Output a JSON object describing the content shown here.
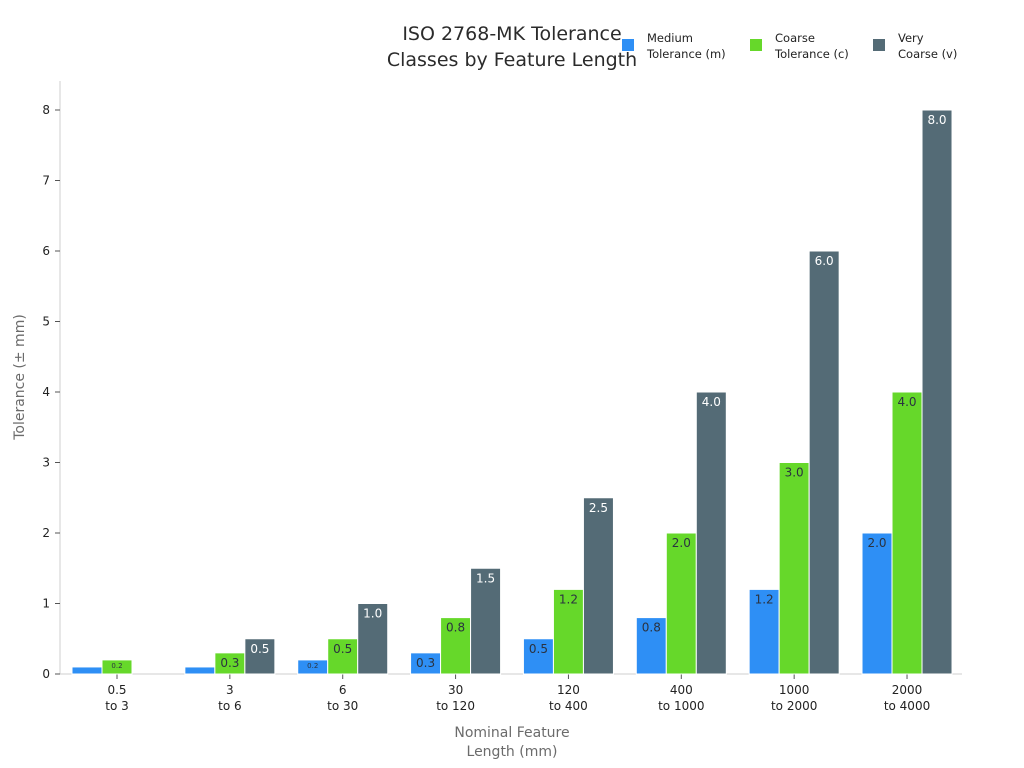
{
  "chart_data": {
    "type": "bar",
    "title_lines": [
      "ISO 2768-MK Tolerance",
      "Classes by Feature Length"
    ],
    "xlabel_lines": [
      "Nominal Feature",
      "Length (mm)"
    ],
    "ylabel": "Tolerance (± mm)",
    "ylim": [
      0,
      8
    ],
    "yticks": [
      0,
      1,
      2,
      3,
      4,
      5,
      6,
      7,
      8
    ],
    "categories": [
      [
        "0.5",
        "to 3"
      ],
      [
        "3",
        "to 6"
      ],
      [
        "6",
        "to 30"
      ],
      [
        "30",
        "to 120"
      ],
      [
        "120",
        "to 400"
      ],
      [
        "400",
        "to 1000"
      ],
      [
        "1000",
        "to 2000"
      ],
      [
        "2000",
        "to 4000"
      ]
    ],
    "series": [
      {
        "name_lines": [
          "Medium",
          "Tolerance (m)"
        ],
        "color": "#2e8ff5",
        "label_color": "#2b3340",
        "values": [
          0.1,
          0.1,
          0.2,
          0.3,
          0.5,
          0.8,
          1.2,
          2.0
        ],
        "labels": [
          "",
          "",
          "0.2",
          "0.3",
          "0.5",
          "0.8",
          "1.2",
          "2.0"
        ]
      },
      {
        "name_lines": [
          "Coarse",
          "Tolerance (c)"
        ],
        "color": "#66d82a",
        "label_color": "#2b3340",
        "values": [
          0.2,
          0.3,
          0.5,
          0.8,
          1.2,
          2.0,
          3.0,
          4.0
        ],
        "labels": [
          "0.2",
          "0.3",
          "0.5",
          "0.8",
          "1.2",
          "2.0",
          "3.0",
          "4.0"
        ]
      },
      {
        "name_lines": [
          "Very",
          "Coarse (v)"
        ],
        "color": "#546b76",
        "label_color": "#ffffff",
        "values": [
          null,
          0.5,
          1.0,
          1.5,
          2.5,
          4.0,
          6.0,
          8.0
        ],
        "labels": [
          "",
          "0.5",
          "1.0",
          "1.5",
          "2.5",
          "4.0",
          "6.0",
          "8.0"
        ]
      }
    ],
    "legend_position": "top-right",
    "grid": false
  }
}
